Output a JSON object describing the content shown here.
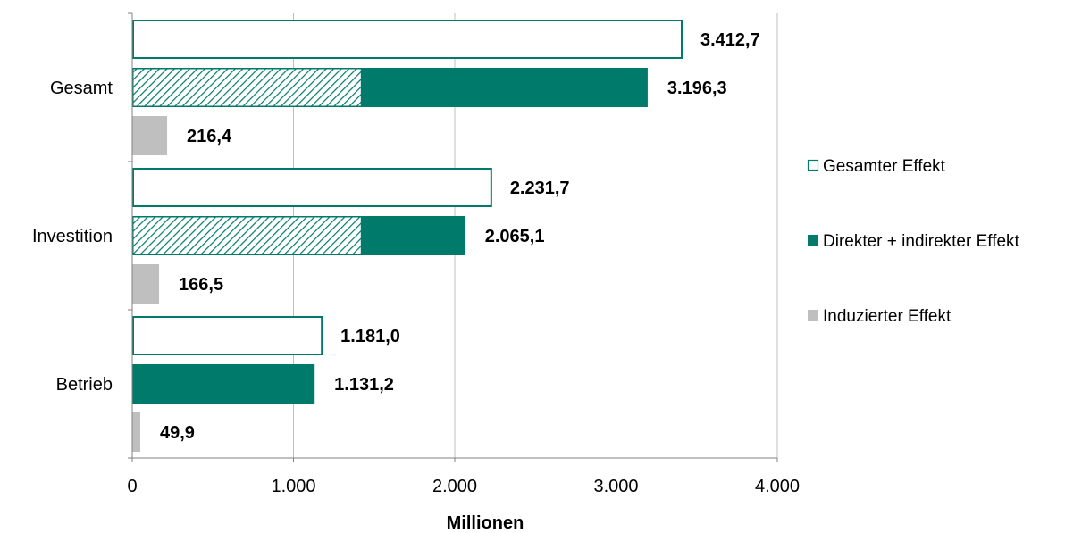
{
  "chart_data": {
    "type": "bar",
    "orientation": "horizontal",
    "categories": [
      "Gesamt",
      "Investition",
      "Betrieb"
    ],
    "series": [
      {
        "name": "Gesamter Effekt",
        "values": [
          3412.7,
          2231.7,
          1181.0
        ],
        "labels": [
          "3.412,7",
          "2.231,7",
          "1.181,0"
        ],
        "color": "#007A6A",
        "style": "outline"
      },
      {
        "name": "Direkter + indirekter Effekt",
        "values": [
          3196.3,
          2065.1,
          1131.2
        ],
        "labels": [
          "3.196,3",
          "2.065,1",
          "1.131,2"
        ],
        "hatched_portion": [
          1420,
          1420,
          0
        ],
        "color": "#007A6A",
        "style": "solid"
      },
      {
        "name": "Induzierter Effekt",
        "values": [
          216.4,
          166.5,
          49.9
        ],
        "labels": [
          "216,4",
          "166,5",
          "49,9"
        ],
        "color": "#BFBFBF",
        "style": "solid"
      }
    ],
    "xlabel": "Millionen",
    "ylabel": "",
    "xlim": [
      0,
      4000
    ],
    "xticks": [
      0,
      1000,
      2000,
      3000,
      4000
    ],
    "xtick_labels": [
      "0",
      "1.000",
      "2.000",
      "3.000",
      "4.000"
    ],
    "grid": "vertical",
    "legend_position": "right"
  }
}
